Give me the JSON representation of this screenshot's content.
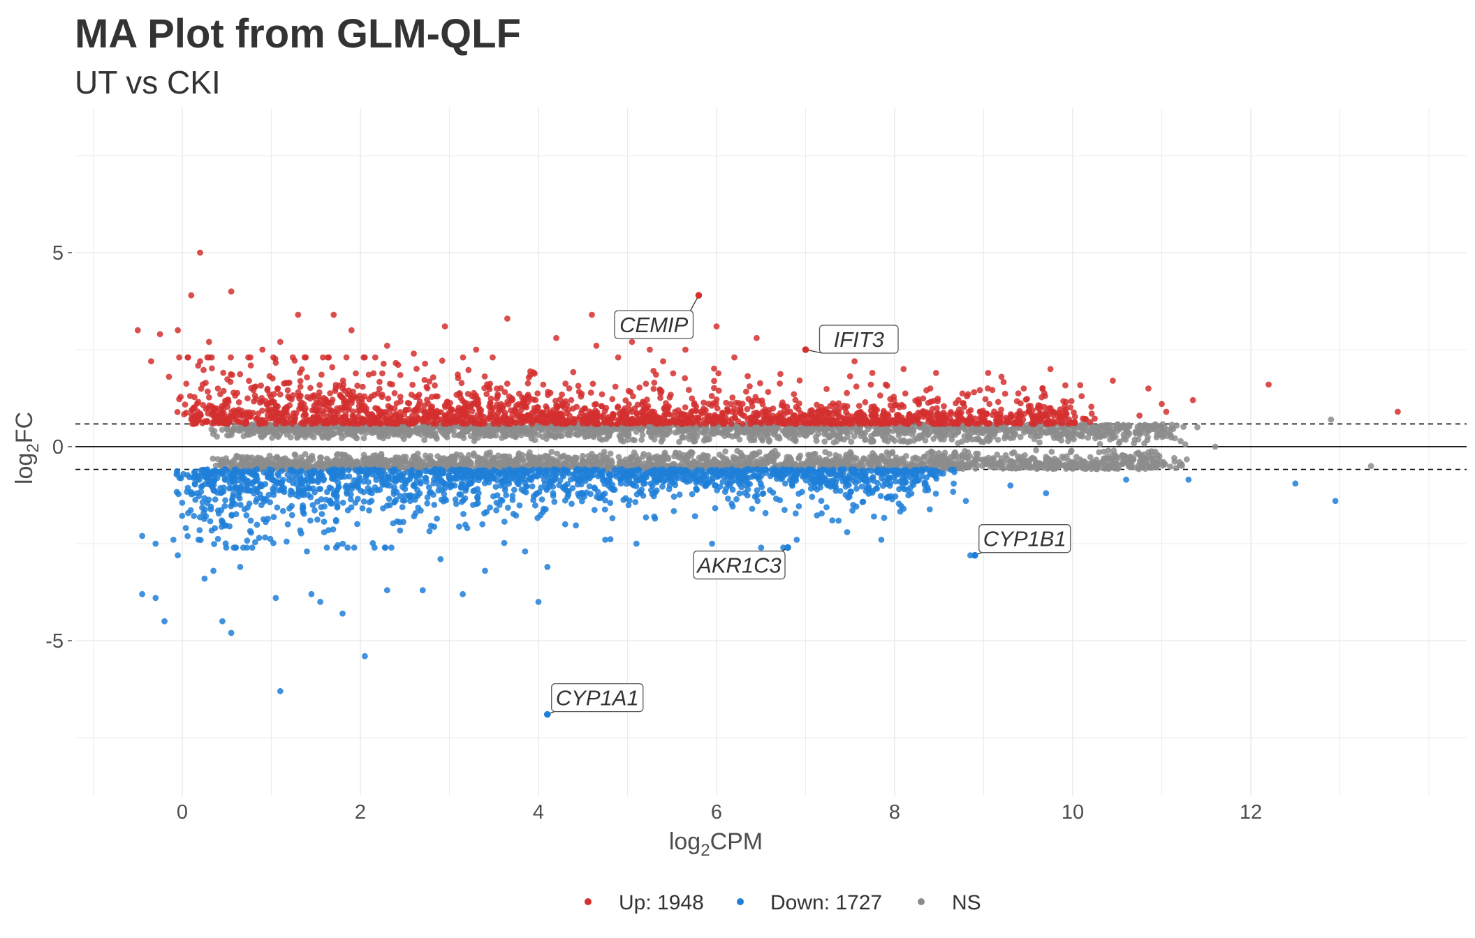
{
  "chart_data": {
    "type": "scatter",
    "title": "MA Plot from GLM-QLF",
    "subtitle": "UT vs CKI",
    "xlabel": {
      "base": "log",
      "sub": "2",
      "rest": "CPM"
    },
    "ylabel": {
      "base": "log",
      "sub": "2",
      "rest": "FC"
    },
    "xlim": [
      -1,
      14
    ],
    "ylim": [
      -9,
      8
    ],
    "x_ticks": [
      0,
      2,
      4,
      6,
      8,
      10,
      12
    ],
    "y_ticks": [
      -5,
      0,
      5
    ],
    "fc_threshold": 0.585,
    "grid": true,
    "legend_position": "bottom",
    "colors": {
      "up": "#d32f2f",
      "down": "#1e7fd8",
      "ns": "#8c8c8c",
      "grid": "#ebebeb",
      "ref_line": "#000000"
    },
    "legend": [
      {
        "key": "up",
        "label": "Up: 1948"
      },
      {
        "key": "down",
        "label": "Down: 1727"
      },
      {
        "key": "ns",
        "label": "NS"
      }
    ],
    "highlighted_genes": [
      {
        "gene": "CEMIP",
        "x": 5.8,
        "y": 3.9,
        "group": "up"
      },
      {
        "gene": "IFIT3",
        "x": 7.0,
        "y": 2.5,
        "group": "up"
      },
      {
        "gene": "CYP1B1",
        "x": 8.9,
        "y": -2.8,
        "group": "down"
      },
      {
        "gene": "AKR1C3",
        "x": 6.8,
        "y": -2.6,
        "group": "down"
      },
      {
        "gene": "CYP1A1",
        "x": 4.1,
        "y": -6.9,
        "group": "down"
      }
    ],
    "up_points": [
      [
        0.2,
        5.0
      ],
      [
        0.55,
        4.0
      ],
      [
        0.1,
        3.9
      ],
      [
        -0.5,
        3.0
      ],
      [
        -0.05,
        3.0
      ],
      [
        -0.25,
        2.9
      ],
      [
        0.3,
        2.7
      ],
      [
        0.2,
        2.2
      ],
      [
        1.3,
        3.4
      ],
      [
        1.7,
        3.4
      ],
      [
        1.9,
        3.0
      ],
      [
        2.95,
        3.1
      ],
      [
        3.65,
        3.3
      ],
      [
        4.6,
        3.4
      ],
      [
        5.1,
        3.2
      ],
      [
        6.0,
        3.1
      ],
      [
        6.45,
        2.8
      ],
      [
        4.2,
        2.8
      ],
      [
        4.65,
        2.6
      ],
      [
        5.25,
        2.5
      ],
      [
        5.65,
        2.5
      ],
      [
        5.05,
        2.7
      ],
      [
        7.55,
        2.2
      ],
      [
        7.75,
        1.9
      ],
      [
        8.1,
        2.0
      ],
      [
        9.75,
        2.0
      ],
      [
        9.2,
        1.8
      ],
      [
        9.45,
        1.5
      ],
      [
        10.45,
        1.7
      ],
      [
        10.85,
        1.5
      ],
      [
        11.35,
        1.2
      ],
      [
        12.2,
        1.6
      ],
      [
        13.65,
        0.9
      ],
      [
        11.05,
        0.9
      ],
      [
        10.75,
        0.8
      ],
      [
        9.05,
        1.9
      ],
      [
        6.2,
        2.3
      ],
      [
        3.3,
        2.5
      ],
      [
        2.3,
        2.6
      ],
      [
        2.6,
        2.4
      ],
      [
        0.9,
        2.5
      ],
      [
        1.1,
        2.7
      ],
      [
        -0.35,
        2.2
      ],
      [
        -0.15,
        1.8
      ],
      [
        0.4,
        1.5
      ],
      [
        7.9,
        1.6
      ],
      [
        8.4,
        1.5
      ],
      [
        5.4,
        2.2
      ],
      [
        10.1,
        1.3
      ],
      [
        11.0,
        1.1
      ]
    ],
    "down_points": [
      [
        4.1,
        -6.9
      ],
      [
        1.1,
        -6.3
      ],
      [
        2.05,
        -5.4
      ],
      [
        0.55,
        -4.8
      ],
      [
        -0.2,
        -4.5
      ],
      [
        0.45,
        -4.5
      ],
      [
        1.8,
        -4.3
      ],
      [
        -0.45,
        -3.8
      ],
      [
        -0.3,
        -3.9
      ],
      [
        1.05,
        -3.9
      ],
      [
        1.45,
        -3.8
      ],
      [
        1.55,
        -4.0
      ],
      [
        4.0,
        -4.0
      ],
      [
        2.3,
        -3.7
      ],
      [
        2.7,
        -3.7
      ],
      [
        3.15,
        -3.8
      ],
      [
        3.4,
        -3.2
      ],
      [
        4.1,
        -3.1
      ],
      [
        8.85,
        -2.8
      ],
      [
        6.75,
        -2.6
      ],
      [
        6.5,
        -2.6
      ],
      [
        5.95,
        -2.5
      ],
      [
        6.9,
        -2.4
      ],
      [
        7.85,
        -2.4
      ],
      [
        5.1,
        -2.5
      ],
      [
        4.75,
        -2.4
      ],
      [
        3.85,
        -2.7
      ],
      [
        2.9,
        -2.9
      ],
      [
        -0.05,
        -2.8
      ],
      [
        0.35,
        -3.2
      ],
      [
        0.65,
        -3.1
      ],
      [
        0.25,
        -3.4
      ],
      [
        -0.45,
        -2.3
      ],
      [
        -0.3,
        -2.5
      ],
      [
        -0.1,
        -2.4
      ],
      [
        0.6,
        -2.6
      ],
      [
        1.4,
        -2.7
      ],
      [
        8.1,
        -1.6
      ],
      [
        8.8,
        -1.4
      ],
      [
        9.7,
        -1.2
      ],
      [
        9.3,
        -1.0
      ],
      [
        10.6,
        -0.85
      ],
      [
        11.3,
        -0.85
      ],
      [
        12.5,
        -0.95
      ],
      [
        12.95,
        -1.4
      ],
      [
        7.3,
        -1.9
      ],
      [
        6.4,
        -1.6
      ],
      [
        5.3,
        -1.8
      ],
      [
        4.3,
        -2.0
      ],
      [
        3.2,
        -2.1
      ]
    ],
    "ns_points": [
      [
        13.35,
        -0.5
      ],
      [
        12.9,
        0.7
      ],
      [
        11.4,
        0.5
      ],
      [
        11.1,
        0.3
      ],
      [
        10.9,
        0.5
      ],
      [
        10.5,
        0.4
      ],
      [
        10.8,
        -0.2
      ],
      [
        11.2,
        -0.4
      ],
      [
        10.2,
        -0.5
      ],
      [
        9.9,
        -0.3
      ],
      [
        10.4,
        -0.1
      ],
      [
        11.6,
        0.0
      ]
    ],
    "band_spec": {
      "up_count": 1948,
      "down_count": 1727,
      "x_range": [
        -0.1,
        10.3
      ],
      "up_fc_range": [
        0.58,
        2.3
      ],
      "down_fc_range": [
        -0.58,
        -2.6
      ],
      "ns_abs_fc_range": [
        0.05,
        0.58
      ],
      "ns_x_range": [
        0.3,
        11.3
      ]
    }
  }
}
